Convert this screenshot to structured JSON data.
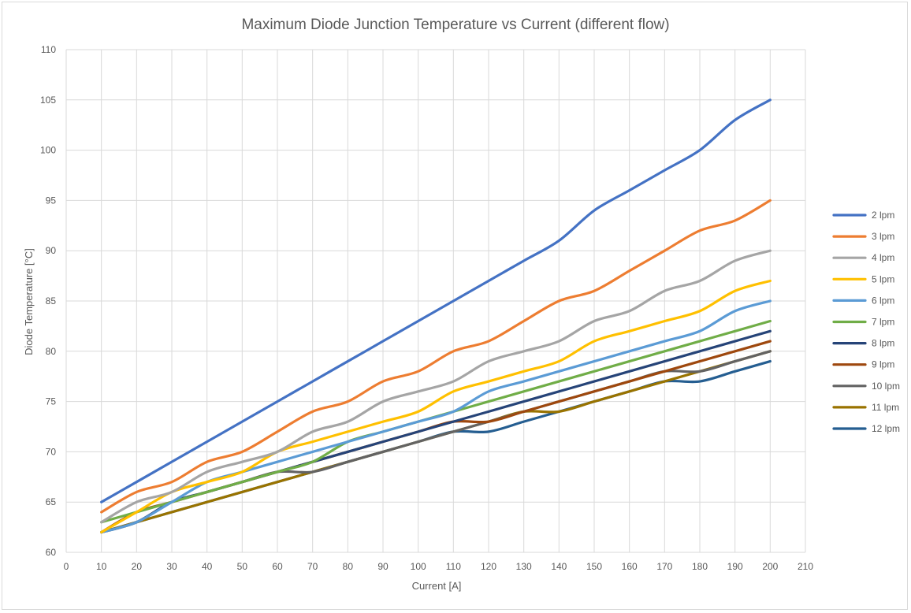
{
  "chart_data": {
    "type": "line",
    "title": "Maximum Diode Junction Temperature vs Current (different flow)",
    "xlabel": "Current  [A]",
    "ylabel": "Diode Temperature  [°C]",
    "xlim": [
      0,
      210
    ],
    "ylim": [
      60,
      110
    ],
    "xticks": [
      0,
      10,
      20,
      30,
      40,
      50,
      60,
      70,
      80,
      90,
      100,
      110,
      120,
      130,
      140,
      150,
      160,
      170,
      180,
      190,
      200,
      210
    ],
    "yticks": [
      60,
      65,
      70,
      75,
      80,
      85,
      90,
      95,
      100,
      105,
      110
    ],
    "grid": true,
    "legend_position": "right",
    "x": [
      10,
      20,
      30,
      40,
      50,
      60,
      70,
      80,
      90,
      100,
      110,
      120,
      130,
      140,
      150,
      160,
      170,
      180,
      190,
      200
    ],
    "series": [
      {
        "name": "2 lpm",
        "color": "#4472C4",
        "values": [
          65,
          67,
          69,
          71,
          73,
          75,
          77,
          79,
          81,
          83,
          85,
          87,
          89,
          91,
          94,
          96,
          98,
          100,
          103,
          105
        ]
      },
      {
        "name": "3 lpm",
        "color": "#ED7D31",
        "values": [
          64,
          66,
          67,
          69,
          70,
          72,
          74,
          75,
          77,
          78,
          80,
          81,
          83,
          85,
          86,
          88,
          90,
          92,
          93,
          95
        ]
      },
      {
        "name": "4 lpm",
        "color": "#A5A5A5",
        "values": [
          63,
          65,
          66,
          68,
          69,
          70,
          72,
          73,
          75,
          76,
          77,
          79,
          80,
          81,
          83,
          84,
          86,
          87,
          89,
          90
        ]
      },
      {
        "name": "5 lpm",
        "color": "#FFC000",
        "values": [
          62,
          64,
          66,
          67,
          68,
          70,
          71,
          72,
          73,
          74,
          76,
          77,
          78,
          79,
          81,
          82,
          83,
          84,
          86,
          87
        ]
      },
      {
        "name": "6 lpm",
        "color": "#5B9BD5",
        "values": [
          62,
          63,
          65,
          67,
          68,
          69,
          70,
          71,
          72,
          73,
          74,
          76,
          77,
          78,
          79,
          80,
          81,
          82,
          84,
          85
        ]
      },
      {
        "name": "7 lpm",
        "color": "#70AD47",
        "values": [
          63,
          64,
          65,
          66,
          67,
          68,
          69,
          71,
          72,
          73,
          74,
          75,
          76,
          77,
          78,
          79,
          80,
          81,
          82,
          83
        ]
      },
      {
        "name": "8 lpm",
        "color": "#264478",
        "values": [
          62,
          63,
          65,
          66,
          67,
          68,
          69,
          70,
          71,
          72,
          73,
          74,
          75,
          76,
          77,
          78,
          79,
          80,
          81,
          82
        ]
      },
      {
        "name": "9 lpm",
        "color": "#9E480E",
        "values": [
          62,
          64,
          65,
          66,
          67,
          68,
          69,
          70,
          71,
          72,
          73,
          73,
          74,
          75,
          76,
          77,
          78,
          79,
          80,
          81
        ]
      },
      {
        "name": "10 lpm",
        "color": "#636363",
        "values": [
          62,
          63,
          65,
          66,
          67,
          68,
          68,
          69,
          70,
          71,
          72,
          73,
          74,
          75,
          76,
          77,
          78,
          78,
          79,
          80
        ]
      },
      {
        "name": "11 lpm",
        "color": "#997300",
        "values": [
          62,
          63,
          64,
          65,
          66,
          67,
          68,
          69,
          70,
          71,
          72,
          73,
          74,
          74,
          75,
          76,
          77,
          78,
          79,
          80
        ]
      },
      {
        "name": "12 lpm",
        "color": "#255E91",
        "values": [
          62,
          63,
          64,
          65,
          66,
          67,
          68,
          69,
          70,
          71,
          72,
          72,
          73,
          74,
          75,
          76,
          77,
          77,
          78,
          79
        ]
      }
    ]
  }
}
